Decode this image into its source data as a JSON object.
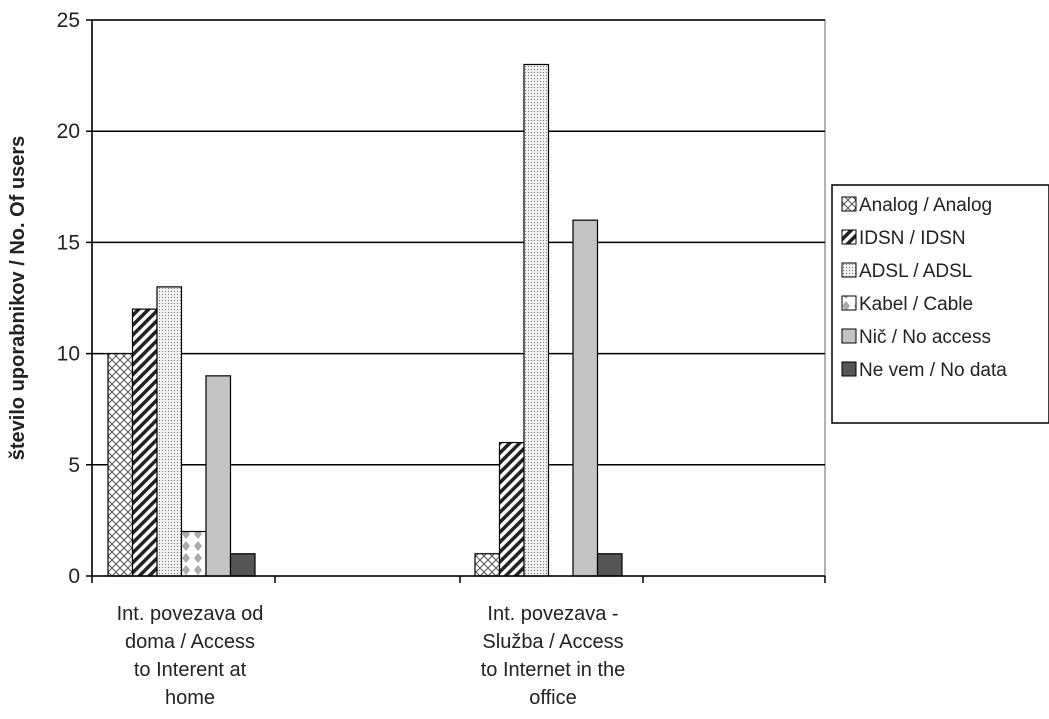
{
  "chart_data": {
    "type": "bar",
    "ylabel": "število uporabnikov / No. Of users",
    "ylim": [
      0,
      25
    ],
    "yticks": [
      "0",
      "5",
      "10",
      "15",
      "20",
      "25"
    ],
    "grid": true,
    "legend_position": "right",
    "categories": [
      [
        "Int. povezava od",
        "doma / Access",
        "to Interent at",
        "home"
      ],
      [
        "Int. povezava -",
        "Služba / Access",
        "to Internet in the",
        "office"
      ]
    ],
    "series": [
      {
        "name": "Analog / Analog",
        "values": [
          10,
          1
        ],
        "pattern": "crosshatch"
      },
      {
        "name": "IDSN / IDSN",
        "values": [
          12,
          6
        ],
        "pattern": "diagonal"
      },
      {
        "name": "ADSL / ADSL",
        "values": [
          13,
          23
        ],
        "pattern": "dots"
      },
      {
        "name": "Kabel / Cable",
        "values": [
          2,
          null
        ],
        "pattern": "diamonds"
      },
      {
        "name": "Nič / No access",
        "values": [
          9,
          16
        ],
        "pattern": "light-gray"
      },
      {
        "name": "Ne vem / No data",
        "values": [
          1,
          1
        ],
        "pattern": "dark-gray"
      }
    ]
  }
}
